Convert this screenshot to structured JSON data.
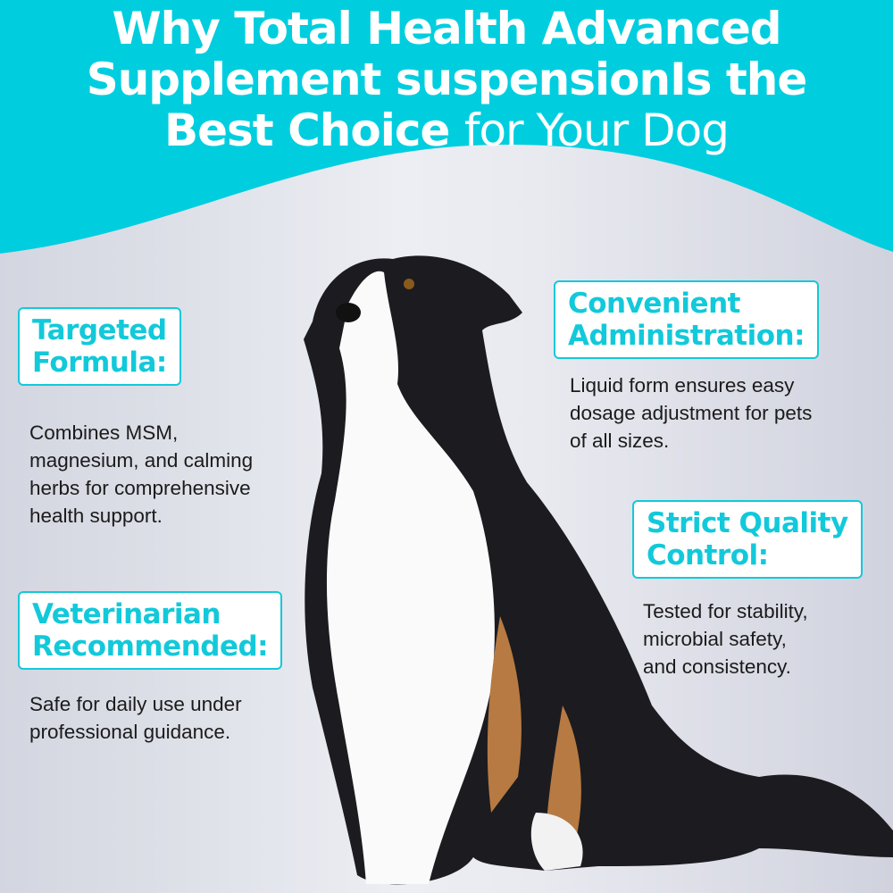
{
  "title": {
    "line1": "Why Total Health Advanced",
    "line2": "Supplement suspensionIs the",
    "line3_bold": "Best Choice",
    "line3_light": "for Your Dog"
  },
  "colors": {
    "accent": "#12c9da",
    "text": "#1b1b1b"
  },
  "features": [
    {
      "heading_1": "Targeted",
      "heading_2": "Formula:",
      "body": [
        "Combines MSM,",
        "magnesium, and calming",
        "herbs for comprehensive",
        "health support."
      ]
    },
    {
      "heading_1": "Veterinarian",
      "heading_2": "Recommended:",
      "body": [
        "Safe for daily use under",
        "professional guidance."
      ]
    },
    {
      "heading_1": "Convenient",
      "heading_2": "Administration:",
      "body": [
        "Liquid form ensures easy",
        "dosage adjustment for pets",
        "of all sizes."
      ]
    },
    {
      "heading_1": "Strict Quality",
      "heading_2": "Control:",
      "body": [
        "Tested for stability,",
        "microbial safety,",
        "and consistency."
      ]
    }
  ]
}
